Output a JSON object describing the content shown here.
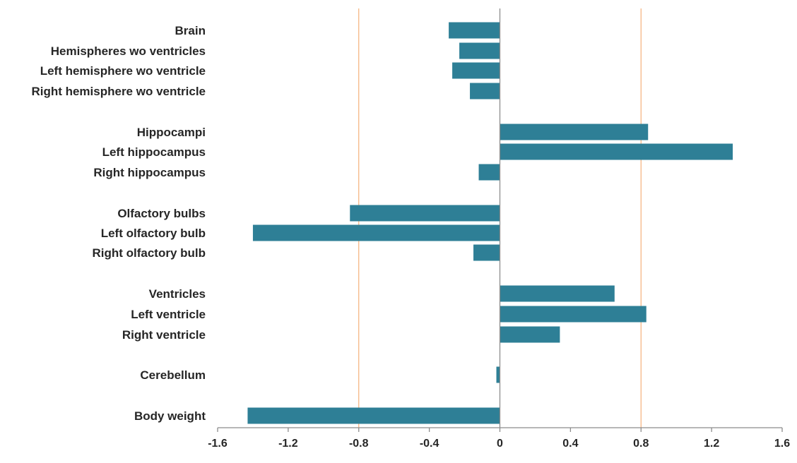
{
  "chart_data": {
    "type": "bar",
    "orientation": "horizontal",
    "categories": [
      "Brain",
      "Hemispheres wo ventricles",
      "Left hemisphere wo ventricle",
      "Right hemisphere wo ventricle",
      "Hippocampi",
      "Left hippocampus",
      "Right hippocampus",
      "Olfactory bulbs",
      "Left olfactory bulb",
      "Right olfactory bulb",
      "Ventricles",
      "Left ventricle",
      "Right ventricle",
      "Cerebellum",
      "Body weight"
    ],
    "values": [
      -0.29,
      -0.23,
      -0.27,
      -0.17,
      0.84,
      1.32,
      -0.12,
      -0.85,
      -1.4,
      -0.15,
      0.65,
      0.83,
      0.34,
      -0.02,
      -1.43
    ],
    "xlim": [
      -1.6,
      1.6
    ],
    "xticks": [
      -1.6,
      -1.2,
      -0.8,
      -0.4,
      0,
      0.4,
      0.8,
      1.2,
      1.6
    ],
    "xtick_labels": [
      "-1.6",
      "-1.2",
      "-0.8",
      "-0.4",
      "0",
      "0.4",
      "0.8",
      "1.2",
      "1.6"
    ],
    "reference_lines": [
      -0.8,
      0.8
    ],
    "title": "",
    "xlabel": "",
    "ylabel": "",
    "grid": false,
    "colors": {
      "bar": "#2e7f96",
      "reference_line": "#f5b07a",
      "axis": "#8c8c8c",
      "text": "#262626"
    }
  }
}
